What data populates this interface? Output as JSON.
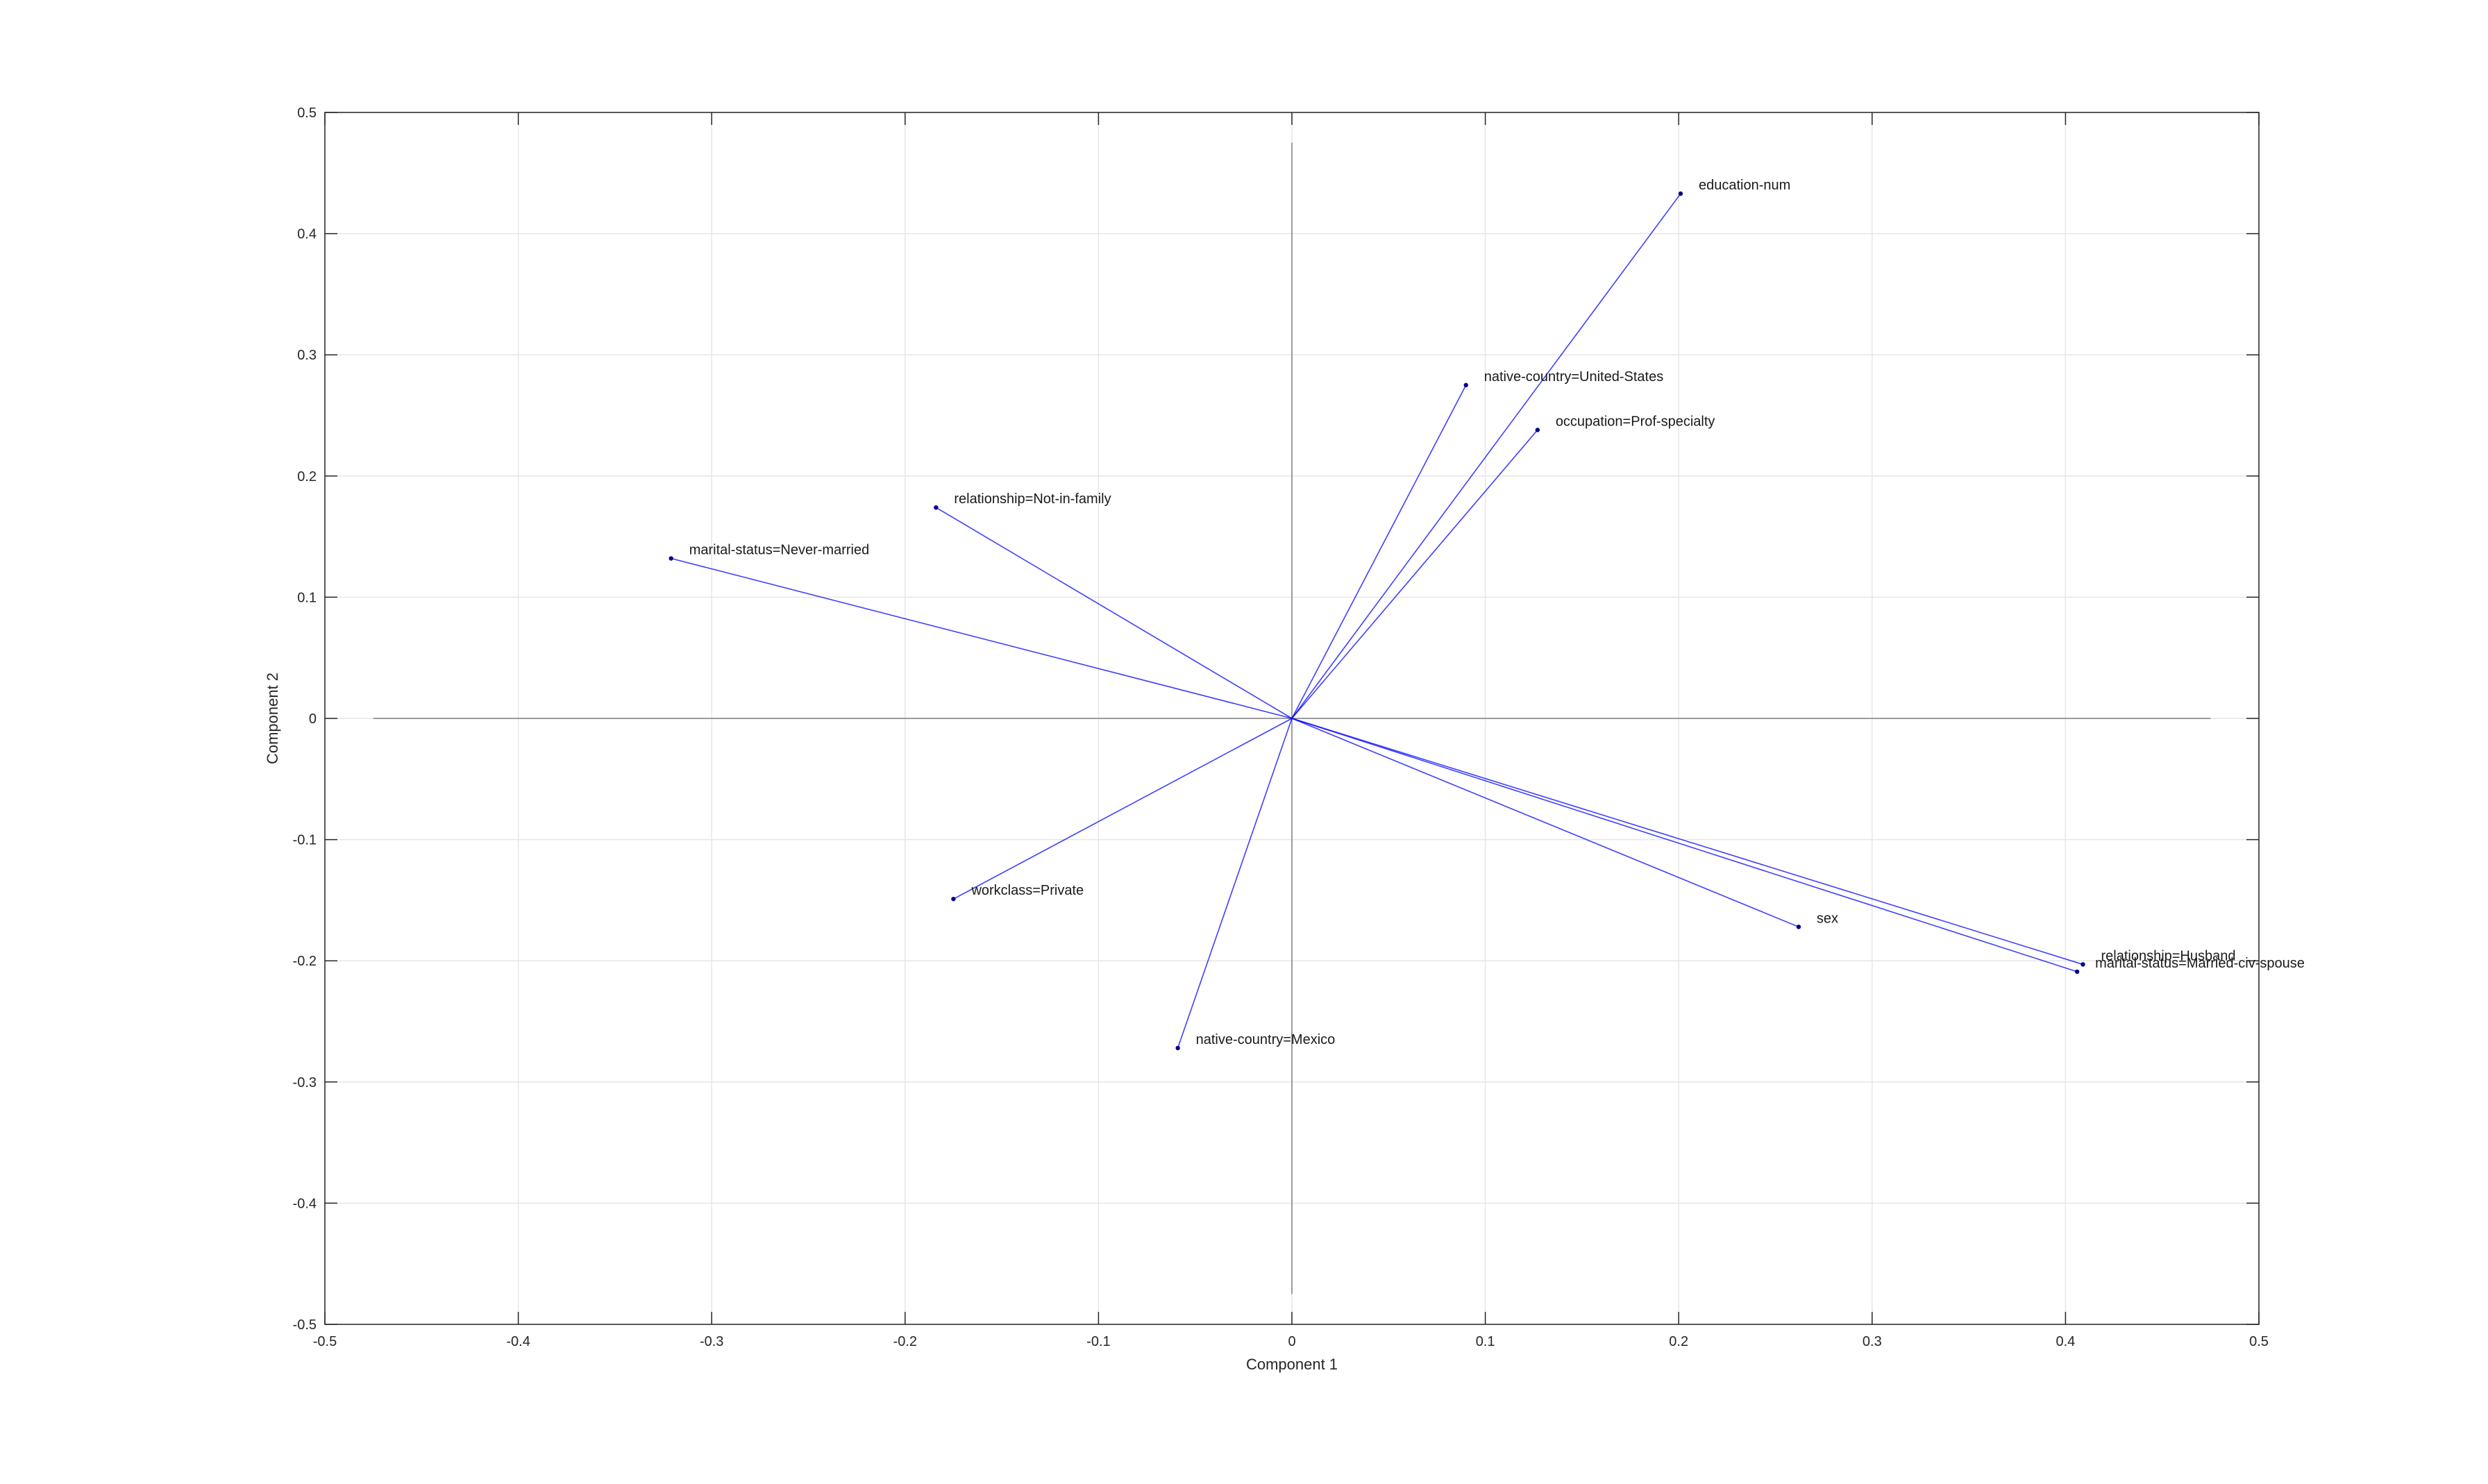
{
  "chart_data": {
    "type": "scatter",
    "subtype": "biplot",
    "title": "",
    "xlabel": "Component 1",
    "ylabel": "Component 2",
    "xlim": [
      -0.5,
      0.5
    ],
    "ylim": [
      -0.5,
      0.5
    ],
    "xticks": [
      -0.5,
      -0.4,
      -0.3,
      -0.2,
      -0.1,
      0,
      0.1,
      0.2,
      0.3,
      0.4,
      0.5
    ],
    "yticks": [
      -0.5,
      -0.4,
      -0.3,
      -0.2,
      -0.1,
      0,
      0.1,
      0.2,
      0.3,
      0.4,
      0.5
    ],
    "xtick_labels": [
      "-0.5",
      "-0.4",
      "-0.3",
      "-0.2",
      "-0.1",
      "0",
      "0.1",
      "0.2",
      "0.3",
      "0.4",
      "0.5"
    ],
    "ytick_labels": [
      "-0.5",
      "-0.4",
      "-0.3",
      "-0.2",
      "-0.1",
      "0",
      "0.1",
      "0.2",
      "0.3",
      "0.4",
      "0.5"
    ],
    "grid": true,
    "zero_lines": {
      "x_range": [
        -0.475,
        0.475
      ],
      "y_range": [
        -0.475,
        0.475
      ]
    },
    "vector_color": "#0000ff",
    "point_color": "#00008b",
    "vectors": [
      {
        "label": "education-num",
        "x": 0.201,
        "y": 0.433
      },
      {
        "label": "native-country=United-States",
        "x": 0.09,
        "y": 0.275
      },
      {
        "label": "occupation=Prof-specialty",
        "x": 0.127,
        "y": 0.238
      },
      {
        "label": "relationship=Not-in-family",
        "x": -0.184,
        "y": 0.174
      },
      {
        "label": "marital-status=Never-married",
        "x": -0.321,
        "y": 0.132
      },
      {
        "label": "workclass=Private",
        "x": -0.175,
        "y": -0.149
      },
      {
        "label": "native-country=Mexico",
        "x": -0.059,
        "y": -0.272
      },
      {
        "label": "sex",
        "x": 0.262,
        "y": -0.172
      },
      {
        "label": "relationship=Husband",
        "x": 0.409,
        "y": -0.203
      },
      {
        "label": "marital-status=Married-civ-spouse",
        "x": 0.406,
        "y": -0.209
      }
    ]
  }
}
